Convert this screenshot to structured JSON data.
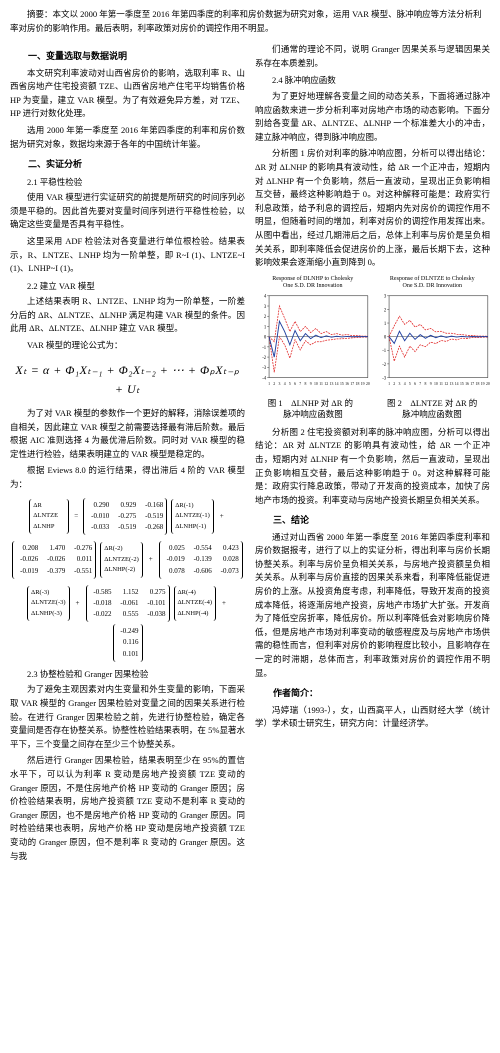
{
  "abstract": "摘要：本文以 2000 年第一季度至 2016 年第四季度的利率和房价数据为研究对象，运用 VAR 模型、脉冲响应等方法分析利率对房价的影响作用。最后表明，利率政策对房价的调控作用不明显。",
  "left": {
    "s1_title": "一、变量选取与数据说明",
    "s1_p1": "本文研究利率波动对山西省房价的影响，选取利率 R、山西省房地产住宅投资额 TZE、山西省房地产住宅平均销售价格 HP 为变量，建立 VAR 模型。为了有效避免异方差，对 TZE、HP 进行对数化处理。",
    "s1_p2": "选用 2000 年第一季度至 2016 年第四季度的利率和房价数据为研究对象，数据均来源于各年的中国统计年鉴。",
    "s2_title": "二、实证分析",
    "s2_1": "2.1 平稳性检验",
    "s2_1_p1": "使用 VAR 模型进行实证研究的前提是所研究的时间序列必须是平稳的。因此首先要对变量时间序列进行平稳性检验，以确定这些变量是否具有平稳性。",
    "s2_1_p2": "这里采用 ADF 检验法对各变量进行单位根检验。结果表示，R、LNTZE、LNHP 均为一阶单整，即 R~I (1)、LNTZE~I (1)、LNHP~I (1)。",
    "s2_2": "2.2 建立 VAR 模型",
    "s2_2_p1": "上述结果表明 R、LNTZE、LNHP 均为一阶单整，一阶差分后的 ΔR、ΔLNTZE、ΔLNHP 满足构建 VAR 模型的条件。因此用 ΔR、ΔLNTZE、ΔLNHP 建立 VAR 模型。",
    "s2_2_p2": "VAR 模型的理论公式为：",
    "formula": "Xₜ = α + Φ₁Xₜ₋₁ + Φ₂Xₜ₋₂ + ⋯ + ΦₚXₜ₋ₚ + Uₜ",
    "s2_2_p3": "为了对 VAR 模型的参数作一个更好的解释，消除误差项的自相关，因此建立 VAR 模型之前需要选择最有滞后阶数。最后根据 AIC 准则选择 4 为最优滞后阶数。同时对 VAR 模型的稳定性进行检验，结果表明建立的 VAR 模型是稳定的。",
    "s2_2_p4": "根据 Eviews 8.0 的运行结果，得出滞后 4 阶的 VAR 模型为：",
    "matrix1": {
      "left_labels": [
        "ΔR",
        "ΔLNTZE",
        "ΔLNHP"
      ],
      "const": [
        [
          "0.290",
          "0.929",
          "-0.168"
        ],
        [
          "-0.010",
          "-0.275",
          "-0.519"
        ],
        [
          "-0.033",
          "-0.519",
          "-0.268"
        ]
      ],
      "lag1_labels": [
        "ΔR(-1)",
        "ΔLNTZE(-1)",
        "ΔLNHP(-1)"
      ]
    },
    "matrix2": {
      "m2a": [
        [
          "0.208",
          "1.470",
          "-0.276"
        ],
        [
          "-0.026",
          "-0.026",
          "0.011"
        ],
        [
          "-0.019",
          "-0.379",
          "-0.551"
        ]
      ],
      "lag2_labels": [
        "ΔR(-2)",
        "ΔLNTZE(-2)",
        "ΔLNHP(-2)"
      ],
      "m2b": [
        [
          "0.025",
          "-0.554",
          "0.423"
        ],
        [
          "-0.019",
          "-0.139",
          "0.028"
        ],
        [
          "0.078",
          "-0.606",
          "-0.073"
        ]
      ]
    },
    "matrix3": {
      "lag3_labels": [
        "ΔR(-3)",
        "ΔLNTZE(-3)",
        "ΔLNHP(-3)"
      ],
      "m3a": [
        [
          "-0.585",
          "1.152",
          "0.275"
        ],
        [
          "-0.018",
          "-0.061",
          "-0.101"
        ],
        [
          "-0.022",
          "0.555",
          "-0.038"
        ]
      ],
      "lag4_labels": [
        "ΔR(-4)",
        "ΔLNTZE(-4)",
        "ΔLNHP(-4)"
      ],
      "m3b": [
        [
          "-0.249"
        ],
        [
          "0.116"
        ],
        [
          "0.101"
        ]
      ]
    },
    "s2_3": "2.3 协整检验和 Granger 因果检验",
    "s2_3_p1": "为了避免主观因素对内生变量和外生变量的影响，下面采取 VAR 模型的 Granger 因果检验对变量之间的因果关系进行检验。在进行 Granger 因果检验之前，先进行协整检验，确定各变量间是否存在协整关系。协整性检验结果表明，在 5%显著水平下，三个变量之间存在至少三个协整关系。",
    "s2_3_p2": "然后进行 Granger 因果检验，结果表明至少在 95%的置信水平下，可以认为利率 R 变动是房地产投资额 TZE 变动的 Granger 原因，不是住房地产价格 HP 变动的 Granger 原因；房价检验结果表明，房地产投资额 TZE 变动不是利率 R 变动的 Granger 原因，也不是房地产价格 HP 变动的 Granger 原因。同时检验结果也表明，房地产价格 HP 变动是房地产投资额 TZE 变动的 Granger 原因，但不是利率 R 变动的 Granger 原因。这与我"
  },
  "right": {
    "r_p0": "们通常的理论不同，说明 Granger 因果关系与逻辑因果关系存在本质差别。",
    "s2_4": "2.4 脉冲响应函数",
    "s2_4_p1": "为了更好地理解各变量之间的动态关系，下面将通过脉冲响应函数来进一步分析利率对房地产市场的动态影响。下面分别给各变量 ΔR、ΔLNTZE、ΔLNHP 一个标准差大小的冲击，建立脉冲响应，得到脉冲响应图。",
    "s2_4_p2": "分析图 1 房价对利率的脉冲响应图，分析可以得出结论：ΔR 对 ΔLNHP 的影响具有波动性，给 ΔR 一个正冲击，短期内对 ΔLNHP 有一个负影响，然后一直波动，呈现出正负影响相互交替，最终这种影响趋于 0。对这种解释可能是：政府实行利息政策，给予利息的调控后，短期内先对房价的调控作用不明显，但随着时间的增加，利率对房价的调控作用发挥出来。从图中看出，经过几期滞后之后，总体上利率与房价是呈负相关关系，即利率降低会促进房价的上涨，最后长期下去，这种影响效果会逐渐缩小直到降到 0。",
    "chart1": {
      "title": "Response of DLNHP to Cholesky\\nOne S.D. DR Innovation",
      "x": [
        1,
        2,
        3,
        4,
        5,
        6,
        7,
        8,
        9,
        10,
        11,
        12,
        13,
        14,
        15,
        16,
        17,
        18,
        19,
        20
      ],
      "blue": [
        0,
        -2,
        1.5,
        0.5,
        -0.8,
        0.6,
        -0.4,
        0.3,
        -0.2,
        0.15,
        -0.1,
        0.08,
        -0.05,
        0.04,
        -0.03,
        0.02,
        -0.01,
        0.01,
        0,
        0
      ],
      "red_hi": [
        0,
        -0.5,
        3,
        1.8,
        0.5,
        1.5,
        0.5,
        1.0,
        0.4,
        0.8,
        0.3,
        0.5,
        0.2,
        0.3,
        0.15,
        0.2,
        0.1,
        0.1,
        0.05,
        0.05
      ],
      "red_lo": [
        0,
        -3.5,
        0,
        -0.8,
        -2.1,
        -0.3,
        -1.3,
        -0.4,
        -0.8,
        -0.5,
        -0.5,
        -0.35,
        -0.3,
        -0.22,
        -0.21,
        -0.16,
        -0.12,
        -0.08,
        -0.05,
        -0.05
      ],
      "ylim": [
        -4,
        4
      ],
      "line_color": "#2040a0",
      "band_color": "#e02020",
      "axis_color": "#000",
      "bg": "#ffffff"
    },
    "chart2": {
      "title": "Response of DLNTZE to Cholesky\\nOne S.D. DR Innovation",
      "x": [
        1,
        2,
        3,
        4,
        5,
        6,
        7,
        8,
        9,
        10,
        11,
        12,
        13,
        14,
        15,
        16,
        17,
        18,
        19,
        20
      ],
      "blue": [
        0,
        -0.5,
        0.4,
        -0.3,
        0.25,
        -0.2,
        0.15,
        -0.12,
        0.1,
        -0.08,
        0.06,
        -0.05,
        0.04,
        -0.03,
        0.02,
        -0.02,
        0.01,
        -0.01,
        0,
        0
      ],
      "red_hi": [
        0,
        0.8,
        1.5,
        0.9,
        1.2,
        0.7,
        0.9,
        0.5,
        0.6,
        0.35,
        0.4,
        0.25,
        0.25,
        0.18,
        0.15,
        0.1,
        0.08,
        0.05,
        0.04,
        0.03
      ],
      "red_lo": [
        0,
        -1.8,
        -0.7,
        -1.5,
        -0.7,
        -1.1,
        -0.6,
        -0.74,
        -0.4,
        -0.51,
        -0.28,
        -0.35,
        -0.17,
        -0.24,
        -0.11,
        -0.14,
        -0.06,
        -0.07,
        -0.04,
        -0.03
      ],
      "ylim": [
        -3,
        3
      ],
      "line_color": "#2040a0",
      "band_color": "#e02020",
      "axis_color": "#000",
      "bg": "#ffffff"
    },
    "fig_caption": "图 1　ΔLNHP 对 ΔR 的　　　　图 2　ΔLNTZE 对 ΔR 的\\n脉冲响应函数图　　　　　　　脉冲响应函数图",
    "s2_4_p3": "分析图 2 住宅投资额对利率的脉冲响应图，分析可以得出结论：ΔR 对 ΔLNTZE 的影响具有波动性，给 ΔR 一个正冲击，短期内对 ΔLNHP 有一个负影响，然后一直波动，呈现出正负影响相互交替，最后这种影响趋于 0。对这种解释可能是：政府实行降息政策，带动了开发商的投资成本，加快了房地产市场的投资。利率变动与房地产投资长期呈负相关关系。",
    "s3_title": "三、结论",
    "s3_p1": "通过对山西省 2000 年第一季度至 2016 年第四季度利率和房价数据报考，进行了以上的实证分析，得出利率与房价长期协整关系。利率与房价呈负相关关系，与房地产投资额呈负相关关系。从利率与房价直接的因果关系来看，利率降低能促进房价的上涨。从投资角度考虑，利率降低，导致开发商的投资成本降低，将逐渐房地产投资，房地产市场扩大扩张。开发商为了降低空房折率，降低房价。所以利率降低会对影响房价降低，但是房地产市场对利率变动的敏感程度及与房地产市场供需的稳性而言，但利率对房价的影响程度比较小，且影响存在一定的时滞期，总体而言，利率政策对房价的调控作用不明显。",
    "author_title": "作者简介：",
    "author_p": "冯婷瑞（1993-），女，山西高平人，山西财经大学（统计学）学术硕士研究生，研究方向：计量经济学。"
  }
}
